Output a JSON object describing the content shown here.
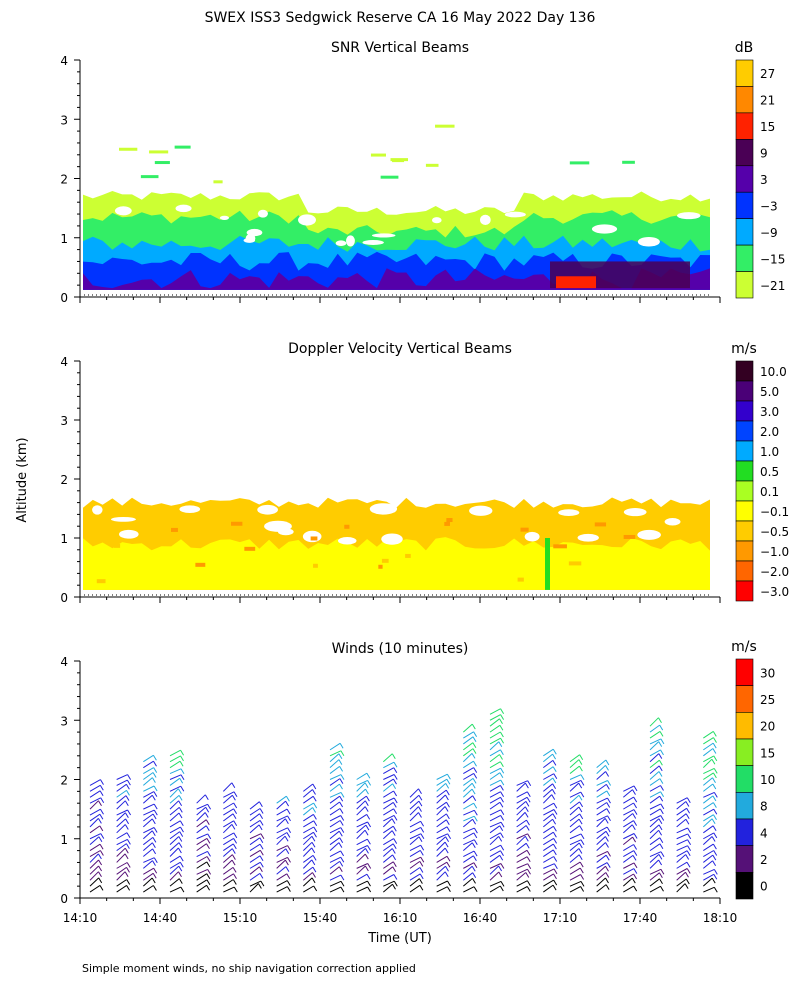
{
  "title": "SWEX ISS3 Sedgwick Reserve CA  16 May 2022 Day 136",
  "y_axis_label": "Altitude (km)",
  "footnote": "Simple moment winds, no ship navigation correction applied",
  "chart_data": [
    {
      "id": "snr",
      "type": "heatmap",
      "title": "SNR Vertical Beams",
      "xlabel": "",
      "ylabel": "Altitude (km)",
      "ylim": [
        0,
        4
      ],
      "y_ticks": [
        "0",
        "1",
        "2",
        "3",
        "4"
      ],
      "xlim": [
        "14:10",
        "18:10"
      ],
      "colorbar": {
        "unit": "dB",
        "labels": [
          "27",
          "21",
          "15",
          "9",
          "3",
          "−3",
          "−9",
          "−15",
          "−21"
        ],
        "colors": [
          "#ffcc00",
          "#ff8800",
          "#ff2200",
          "#4a0055",
          "#5500aa",
          "#0033ff",
          "#00aaff",
          "#33ee66",
          "#ccff33"
        ]
      },
      "layers": [
        {
          "name": "-21",
          "color": "#ccff33",
          "top_km": 1.7
        },
        {
          "name": "-15",
          "color": "#33ee66",
          "top_km": 1.35
        },
        {
          "name": "-9",
          "color": "#00aaff",
          "top_km": 0.9
        },
        {
          "name": "-3",
          "color": "#0033ff",
          "top_km": 0.6
        },
        {
          "name": "3",
          "color": "#5500aa",
          "top_km": 0.3
        }
      ]
    },
    {
      "id": "doppler",
      "type": "heatmap",
      "title": "Doppler Velocity Vertical Beams",
      "xlabel": "",
      "ylabel": "Altitude (km)",
      "ylim": [
        0,
        4
      ],
      "y_ticks": [
        "0",
        "1",
        "2",
        "3",
        "4"
      ],
      "xlim": [
        "14:10",
        "18:10"
      ],
      "colorbar": {
        "unit": "m/s",
        "labels": [
          "10.0",
          "5.0",
          "3.0",
          "2.0",
          "1.0",
          "0.5",
          "0.1",
          "−0.1",
          "−0.5",
          "−1.0",
          "−2.0",
          "−3.0"
        ],
        "colors": [
          "#330022",
          "#4a0077",
          "#3300cc",
          "#0044ff",
          "#00aaff",
          "#22dd22",
          "#aaff22",
          "#ffff00",
          "#ffcc00",
          "#ff9900",
          "#ff6600",
          "#ff0000"
        ]
      },
      "layers": [
        {
          "name": "-0.5",
          "color": "#ffcc00",
          "top_km": 1.6
        },
        {
          "name": "-0.1",
          "color": "#ffff00",
          "top_km": 0.9
        }
      ]
    },
    {
      "id": "winds",
      "type": "scatter",
      "title": "Winds (10 minutes)",
      "xlabel": "Time (UT)",
      "ylabel": "Altitude (km)",
      "ylim": [
        0,
        4
      ],
      "y_ticks": [
        "0",
        "1",
        "2",
        "3",
        "4"
      ],
      "x_ticks": [
        "14:10",
        "14:40",
        "15:10",
        "15:40",
        "16:10",
        "16:40",
        "17:10",
        "17:40",
        "18:10"
      ],
      "xlim": [
        "14:10",
        "18:10"
      ],
      "colorbar": {
        "unit": "m/s",
        "labels": [
          "30",
          "25",
          "20",
          "15",
          "10",
          "8",
          "4",
          "2",
          "0"
        ],
        "colors": [
          "#ff0000",
          "#ff6600",
          "#ffbb00",
          "#88ee22",
          "#22dd66",
          "#22aadd",
          "#2222dd",
          "#551177",
          "#000000"
        ]
      },
      "profile_times": [
        "14:10",
        "14:20",
        "14:30",
        "14:40",
        "14:50",
        "15:00",
        "15:10",
        "15:20",
        "15:30",
        "15:40",
        "15:50",
        "16:00",
        "16:10",
        "16:20",
        "16:30",
        "16:40",
        "16:50",
        "17:00",
        "17:10",
        "17:20",
        "17:30",
        "17:40",
        "17:50",
        "18:00"
      ],
      "profile_tops_km": [
        2.0,
        2.1,
        2.4,
        2.5,
        1.7,
        1.9,
        1.6,
        1.7,
        1.9,
        2.6,
        2.1,
        2.4,
        1.8,
        2.1,
        2.9,
        3.2,
        2.0,
        2.5,
        2.4,
        2.3,
        1.9,
        3.0,
        1.7,
        2.8
      ],
      "wind_speed_ms": [
        6,
        8,
        9,
        10,
        6,
        7,
        7,
        8,
        9,
        10,
        9,
        9,
        8,
        10,
        11,
        12,
        7,
        9,
        10,
        10,
        8,
        11,
        8,
        12
      ]
    }
  ]
}
